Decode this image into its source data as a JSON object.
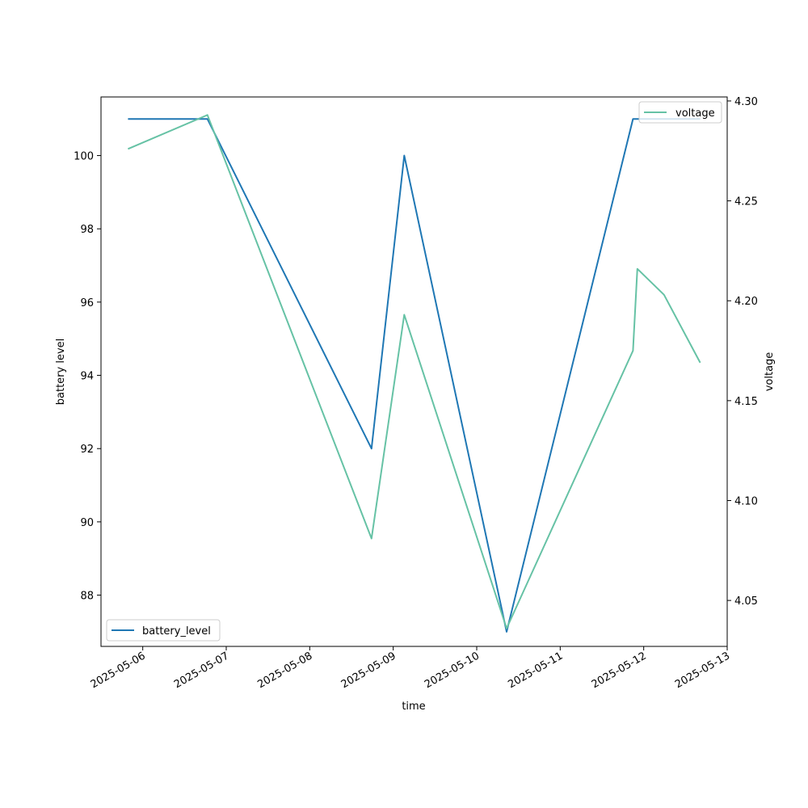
{
  "chart_data": {
    "type": "line",
    "xlabel": "time",
    "x_ticks": [
      "2025-05-06",
      "2025-05-07",
      "2025-05-08",
      "2025-05-09",
      "2025-05-10",
      "2025-05-11",
      "2025-05-12",
      "2025-05-13"
    ],
    "x_range": [
      "2025-05-05 12:00",
      "2025-05-13 00:00"
    ],
    "grid": false,
    "left_axis": {
      "label": "battery level",
      "ylim": [
        86.6,
        101.6
      ],
      "ticks": [
        "88",
        "90",
        "92",
        "94",
        "96",
        "98",
        "100"
      ]
    },
    "right_axis": {
      "label": "voltage",
      "ylim": [
        4.027,
        4.302
      ],
      "ticks": [
        "4.05",
        "4.10",
        "4.15",
        "4.20",
        "4.25",
        "4.30"
      ]
    },
    "series": [
      {
        "name": "battery_level",
        "axis": "left",
        "color": "#1f77b4",
        "legend_position": "lower-left",
        "points": [
          {
            "x": "2025-05-05 19:45",
            "y": 101
          },
          {
            "x": "2025-05-06 18:35",
            "y": 101
          },
          {
            "x": "2025-05-08 17:45",
            "y": 92
          },
          {
            "x": "2025-05-09 03:10",
            "y": 100
          },
          {
            "x": "2025-05-10 08:35",
            "y": 87
          },
          {
            "x": "2025-05-11 20:55",
            "y": 101
          },
          {
            "x": "2025-05-12 16:15",
            "y": 101
          }
        ]
      },
      {
        "name": "voltage",
        "axis": "right",
        "color": "#66c2a5",
        "legend_position": "upper-right",
        "points": [
          {
            "x": "2025-05-05 19:45",
            "y": 4.276
          },
          {
            "x": "2025-05-06 18:35",
            "y": 4.293
          },
          {
            "x": "2025-05-08 17:45",
            "y": 4.081
          },
          {
            "x": "2025-05-09 03:10",
            "y": 4.193
          },
          {
            "x": "2025-05-10 08:35",
            "y": 4.036
          },
          {
            "x": "2025-05-11 20:55",
            "y": 4.175
          },
          {
            "x": "2025-05-11 22:10",
            "y": 4.216
          },
          {
            "x": "2025-05-12 05:50",
            "y": 4.203
          },
          {
            "x": "2025-05-12 16:15",
            "y": 4.169
          }
        ]
      }
    ]
  }
}
